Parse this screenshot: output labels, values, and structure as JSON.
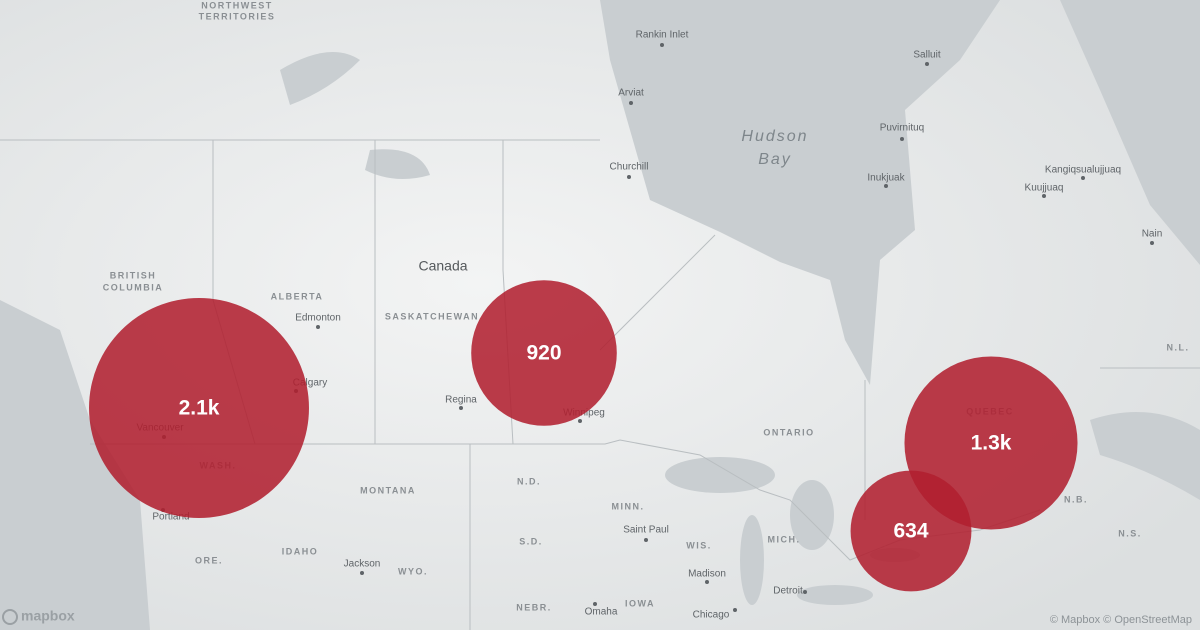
{
  "map": {
    "places": [
      {
        "label": "NORTHWEST"
      },
      {
        "label": "TERRITORIES"
      },
      {
        "label": "Rankin Inlet"
      },
      {
        "label": "Arviat"
      },
      {
        "label": "Hudson"
      },
      {
        "label": "Bay"
      },
      {
        "label": "Churchill"
      },
      {
        "label": "Salluit"
      },
      {
        "label": "Puvirnituq"
      },
      {
        "label": "Inukjuak"
      },
      {
        "label": "Kangiqsualujjuaq"
      },
      {
        "label": "Kuujjuaq"
      },
      {
        "label": "Nain"
      },
      {
        "label": "Canada"
      },
      {
        "label": "BRITISH"
      },
      {
        "label": "COLUMBIA"
      },
      {
        "label": "ALBERTA"
      },
      {
        "label": "Edmonton"
      },
      {
        "label": "SASKATCHEWAN"
      },
      {
        "label": "Calgary"
      },
      {
        "label": "Regina"
      },
      {
        "label": "Winnipeg"
      },
      {
        "label": "Vancouver"
      },
      {
        "label": "WASH."
      },
      {
        "label": "ONTARIO"
      },
      {
        "label": "QUEBEC"
      },
      {
        "label": "N.B."
      },
      {
        "label": "N.S."
      },
      {
        "label": "N.L."
      },
      {
        "label": "MONTANA"
      },
      {
        "label": "N.D."
      },
      {
        "label": "MINN."
      },
      {
        "label": "Saint Paul"
      },
      {
        "label": "WIS."
      },
      {
        "label": "MICH."
      },
      {
        "label": "Portland"
      },
      {
        "label": "ORE."
      },
      {
        "label": "IDAHO"
      },
      {
        "label": "WYO."
      },
      {
        "label": "Jackson"
      },
      {
        "label": "S.D."
      },
      {
        "label": "Madison"
      },
      {
        "label": "Detroit"
      },
      {
        "label": "Chicago"
      },
      {
        "label": "NEBR."
      },
      {
        "label": "IOWA"
      },
      {
        "label": "Omaha"
      }
    ],
    "clusters": [
      {
        "value": 2100,
        "label": "2.1k"
      },
      {
        "value": 920,
        "label": "920"
      },
      {
        "value": 1300,
        "label": "1.3k"
      },
      {
        "value": 634,
        "label": "634"
      }
    ],
    "cluster_color": "#b11f2f"
  },
  "logo": "mapbox",
  "attribution": "© Mapbox © OpenStreetMap"
}
